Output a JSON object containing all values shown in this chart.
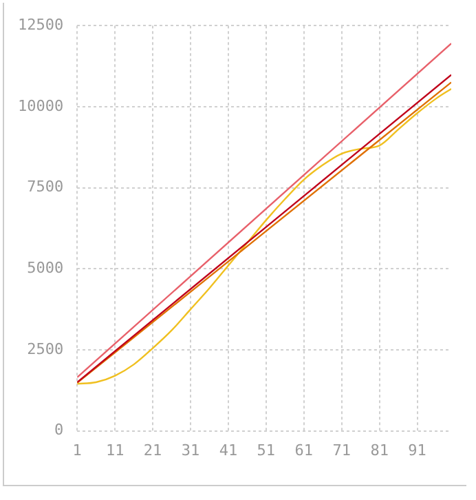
{
  "chart_data": {
    "type": "line",
    "xlim": [
      1,
      100
    ],
    "xticks": [
      1,
      11,
      21,
      31,
      41,
      51,
      61,
      71,
      81,
      91
    ],
    "ylim": [
      0,
      12500
    ],
    "yticks": [
      0,
      2500,
      5000,
      7500,
      10000,
      12500
    ],
    "grid": true,
    "legend": false,
    "marker": "none",
    "line_style": "solid",
    "series": [
      {
        "color": "#e8606a",
        "x": [
          1,
          100
        ],
        "values": [
          1650,
          11950
        ]
      },
      {
        "color": "#c0001a",
        "x": [
          1,
          100
        ],
        "values": [
          1500,
          10980
        ]
      },
      {
        "color": "#e07000",
        "x": [
          1,
          100
        ],
        "values": [
          1480,
          10750
        ]
      },
      {
        "color": "#f0c020",
        "x": [
          1,
          6,
          11,
          16,
          21,
          26,
          31,
          36,
          41,
          46,
          51,
          56,
          61,
          66,
          71,
          76,
          81,
          86,
          91,
          96,
          100
        ],
        "values": [
          1450,
          1500,
          1700,
          2050,
          2550,
          3100,
          3750,
          4400,
          5100,
          5800,
          6500,
          7150,
          7750,
          8200,
          8550,
          8700,
          8800,
          9300,
          9800,
          10250,
          10550
        ]
      }
    ]
  }
}
